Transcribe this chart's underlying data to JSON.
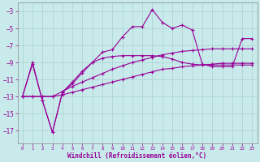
{
  "background_color": "#c8eaea",
  "grid_color": "#b0d4d4",
  "line_color": "#990099",
  "xlabel": "Windchill (Refroidissement éolien,°C)",
  "xlim": [
    -0.5,
    23.5
  ],
  "ylim": [
    -18.5,
    -2.0
  ],
  "yticks": [
    -17,
    -15,
    -13,
    -11,
    -9,
    -7,
    -5,
    -3
  ],
  "xticks": [
    0,
    1,
    2,
    3,
    4,
    5,
    6,
    7,
    8,
    9,
    10,
    11,
    12,
    13,
    14,
    15,
    16,
    17,
    18,
    19,
    20,
    21,
    22,
    23
  ],
  "series": [
    {
      "x": [
        0,
        1,
        2,
        3,
        4,
        5,
        6,
        7,
        8,
        9,
        10,
        11,
        12,
        13,
        14,
        15,
        16,
        17,
        18,
        19,
        20,
        21,
        22,
        23
      ],
      "y": [
        -13.0,
        -9.0,
        -13.5,
        -17.2,
        -12.5,
        -11.5,
        -10.2,
        -9.0,
        -7.8,
        -7.5,
        -6.0,
        -4.8,
        -4.8,
        -2.8,
        -4.3,
        -5.0,
        -4.6,
        -5.2,
        -9.2,
        -9.5,
        -9.5,
        -9.5,
        -6.2,
        -6.2
      ]
    },
    {
      "x": [
        0,
        1,
        2,
        3,
        4,
        5,
        6,
        7,
        8,
        9,
        10,
        11,
        12,
        13,
        14,
        15,
        16,
        17,
        18,
        19,
        20,
        21,
        22,
        23
      ],
      "y": [
        -13.0,
        -9.2,
        -13.5,
        -17.2,
        -12.5,
        -11.3,
        -10.0,
        -9.0,
        -8.5,
        -8.3,
        -8.2,
        -8.2,
        -8.2,
        -8.2,
        -8.3,
        -8.6,
        -9.0,
        -9.2,
        -9.3,
        -9.3,
        -9.3,
        -9.3,
        -9.3,
        -9.3
      ]
    },
    {
      "x": [
        0,
        1,
        2,
        3,
        4,
        5,
        6,
        7,
        8,
        9,
        10,
        11,
        12,
        13,
        14,
        15,
        16,
        17,
        18,
        19,
        20,
        21,
        22,
        23
      ],
      "y": [
        -13.0,
        -13.0,
        -13.0,
        -13.0,
        -12.8,
        -12.5,
        -12.2,
        -11.9,
        -11.6,
        -11.3,
        -11.0,
        -10.7,
        -10.4,
        -10.1,
        -9.8,
        -9.7,
        -9.5,
        -9.4,
        -9.3,
        -9.2,
        -9.1,
        -9.1,
        -9.1,
        -9.1
      ]
    },
    {
      "x": [
        0,
        1,
        2,
        3,
        4,
        5,
        6,
        7,
        8,
        9,
        10,
        11,
        12,
        13,
        14,
        15,
        16,
        17,
        18,
        19,
        20,
        21,
        22,
        23
      ],
      "y": [
        -13.0,
        -13.0,
        -13.0,
        -13.0,
        -12.4,
        -11.8,
        -11.3,
        -10.8,
        -10.3,
        -9.8,
        -9.4,
        -9.0,
        -8.7,
        -8.4,
        -8.1,
        -7.9,
        -7.7,
        -7.6,
        -7.5,
        -7.4,
        -7.4,
        -7.4,
        -7.4,
        -7.4
      ]
    }
  ]
}
